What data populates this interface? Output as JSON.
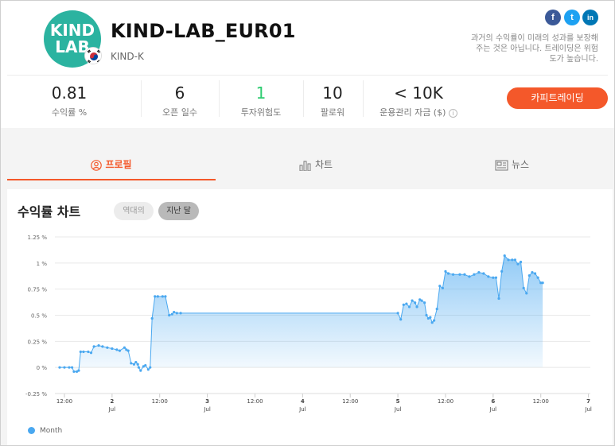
{
  "header": {
    "logo_line1": "KIND",
    "logo_line2": "LAB",
    "strategy_name": "KIND-LAB_EUR01",
    "provider": "KIND-K",
    "disclaimer": "과거의 수익률이 미래의 성과를 보장해 주는 것은 아닙니다. 트레이딩은 위험도가 높습니다.",
    "social": [
      {
        "icon": "facebook-icon",
        "glyph": "f",
        "color": "#3b5998"
      },
      {
        "icon": "twitter-icon",
        "glyph": "t",
        "color": "#1da1f2"
      },
      {
        "icon": "linkedin-icon",
        "glyph": "in",
        "color": "#0077b5"
      }
    ]
  },
  "stats": [
    {
      "value": "0.81",
      "label": "수익률 %",
      "color": "#222222"
    },
    {
      "value": "6",
      "label": "오픈 일수",
      "color": "#222222"
    },
    {
      "value": "1",
      "label": "투자위험도",
      "color": "#2ecc71"
    },
    {
      "value": "10",
      "label": "팔로워",
      "color": "#222222"
    },
    {
      "value": "< 10K",
      "label": "운용관리 자금 ($)",
      "color": "#222222"
    }
  ],
  "cta_label": "카피트레이딩",
  "tabs": [
    {
      "label": "프로필",
      "icon": "user-icon",
      "active": true
    },
    {
      "label": "차트",
      "icon": "bar-chart-icon",
      "active": false
    },
    {
      "label": "뉴스",
      "icon": "newspaper-icon",
      "active": false
    }
  ],
  "chart_section": {
    "title": "수익률 차트",
    "range_options": [
      "역대의",
      "지난 달"
    ],
    "selected_range": "지난 달",
    "legend": "Month"
  },
  "chart_data": {
    "type": "area",
    "ylim": [
      -0.25,
      1.25
    ],
    "y_ticks": [
      "1.25 %",
      "1 %",
      "0.75 %",
      "0.5 %",
      "0.25 %",
      "0 %",
      "-0.25 %"
    ],
    "x_ticks": [
      {
        "t": 0.0,
        "label": "12:00",
        "sub": ""
      },
      {
        "t": 0.5,
        "label": "2",
        "sub": "Jul"
      },
      {
        "t": 1.0,
        "label": "12:00",
        "sub": ""
      },
      {
        "t": 1.5,
        "label": "3",
        "sub": "Jul"
      },
      {
        "t": 2.0,
        "label": "12:00",
        "sub": ""
      },
      {
        "t": 2.5,
        "label": "4",
        "sub": "Jul"
      },
      {
        "t": 3.0,
        "label": "12:00",
        "sub": ""
      },
      {
        "t": 3.5,
        "label": "5",
        "sub": "Jul"
      },
      {
        "t": 4.0,
        "label": "12:00",
        "sub": ""
      },
      {
        "t": 4.5,
        "label": "6",
        "sub": "Jul"
      },
      {
        "t": 5.0,
        "label": "12:00",
        "sub": ""
      },
      {
        "t": 5.5,
        "label": "7",
        "sub": "Jul"
      }
    ],
    "series": [
      {
        "name": "Month",
        "color": "#4aa8f0",
        "points": [
          [
            -0.05,
            0.0
          ],
          [
            0.0,
            0.0
          ],
          [
            0.05,
            0.0
          ],
          [
            0.08,
            0.0
          ],
          [
            0.1,
            -0.04
          ],
          [
            0.13,
            -0.04
          ],
          [
            0.15,
            -0.03
          ],
          [
            0.17,
            0.15
          ],
          [
            0.2,
            0.15
          ],
          [
            0.25,
            0.15
          ],
          [
            0.28,
            0.14
          ],
          [
            0.31,
            0.2
          ],
          [
            0.36,
            0.21
          ],
          [
            0.4,
            0.2
          ],
          [
            0.45,
            0.19
          ],
          [
            0.5,
            0.18
          ],
          [
            0.55,
            0.17
          ],
          [
            0.58,
            0.16
          ],
          [
            0.63,
            0.19
          ],
          [
            0.65,
            0.17
          ],
          [
            0.67,
            0.16
          ],
          [
            0.7,
            0.04
          ],
          [
            0.73,
            0.03
          ],
          [
            0.75,
            0.05
          ],
          [
            0.77,
            0.03
          ],
          [
            0.78,
            0.0
          ],
          [
            0.8,
            -0.03
          ],
          [
            0.83,
            0.01
          ],
          [
            0.85,
            0.02
          ],
          [
            0.88,
            -0.02
          ],
          [
            0.9,
            0.0
          ],
          [
            0.92,
            0.47
          ],
          [
            0.95,
            0.68
          ],
          [
            0.98,
            0.68
          ],
          [
            1.03,
            0.68
          ],
          [
            1.06,
            0.68
          ],
          [
            1.1,
            0.5
          ],
          [
            1.13,
            0.51
          ],
          [
            1.15,
            0.53
          ],
          [
            1.18,
            0.52
          ],
          [
            1.22,
            0.52
          ],
          [
            3.5,
            0.52
          ],
          [
            3.53,
            0.46
          ],
          [
            3.56,
            0.6
          ],
          [
            3.59,
            0.61
          ],
          [
            3.62,
            0.58
          ],
          [
            3.65,
            0.64
          ],
          [
            3.68,
            0.62
          ],
          [
            3.7,
            0.58
          ],
          [
            3.73,
            0.65
          ],
          [
            3.75,
            0.64
          ],
          [
            3.78,
            0.62
          ],
          [
            3.8,
            0.5
          ],
          [
            3.82,
            0.47
          ],
          [
            3.84,
            0.48
          ],
          [
            3.86,
            0.43
          ],
          [
            3.88,
            0.45
          ],
          [
            3.91,
            0.56
          ],
          [
            3.94,
            0.78
          ],
          [
            3.97,
            0.76
          ],
          [
            4.0,
            0.92
          ],
          [
            4.03,
            0.9
          ],
          [
            4.08,
            0.89
          ],
          [
            4.15,
            0.89
          ],
          [
            4.2,
            0.89
          ],
          [
            4.25,
            0.87
          ],
          [
            4.3,
            0.89
          ],
          [
            4.35,
            0.91
          ],
          [
            4.4,
            0.9
          ],
          [
            4.45,
            0.87
          ],
          [
            4.5,
            0.86
          ],
          [
            4.53,
            0.86
          ],
          [
            4.56,
            0.66
          ],
          [
            4.59,
            0.92
          ],
          [
            4.62,
            1.07
          ],
          [
            4.66,
            1.03
          ],
          [
            4.7,
            1.03
          ],
          [
            4.73,
            1.03
          ],
          [
            4.76,
            0.99
          ],
          [
            4.79,
            1.01
          ],
          [
            4.82,
            0.76
          ],
          [
            4.85,
            0.71
          ],
          [
            4.88,
            0.88
          ],
          [
            4.91,
            0.91
          ],
          [
            4.94,
            0.9
          ],
          [
            4.97,
            0.86
          ],
          [
            5.0,
            0.81
          ],
          [
            5.02,
            0.81
          ]
        ]
      }
    ]
  }
}
